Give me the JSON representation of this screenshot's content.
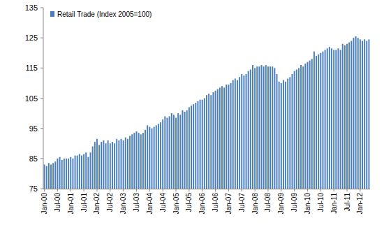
{
  "chart_data": {
    "type": "bar",
    "series": [
      {
        "name": "Retail Trade (Index 2005=100)",
        "color": "#4a7ebb",
        "values": [
          83,
          82.5,
          83.5,
          83,
          83.5,
          84,
          85,
          85.5,
          84.5,
          85,
          85,
          85,
          85.5,
          85,
          86,
          86,
          86.5,
          86,
          86.5,
          87,
          85.5,
          87,
          89,
          90.5,
          91.5,
          89.5,
          90.5,
          91,
          90,
          91,
          90,
          90.5,
          90,
          91.5,
          91,
          91.5,
          91,
          92,
          91.5,
          92.5,
          93,
          93.5,
          94,
          93.5,
          93,
          93.5,
          94.5,
          96,
          95.5,
          95,
          95.5,
          96,
          96.5,
          97,
          98,
          99,
          98.5,
          99,
          100,
          99.5,
          98.5,
          100,
          99.5,
          101,
          100.5,
          101,
          102,
          102.5,
          103,
          103.5,
          104,
          104.5,
          104.5,
          105,
          106,
          106.5,
          106,
          107,
          107.5,
          108,
          108.5,
          109,
          108.5,
          109.5,
          109.5,
          110,
          111,
          111.5,
          111,
          112,
          113,
          112.5,
          113,
          114,
          114.5,
          116,
          115,
          115.5,
          115.5,
          116,
          115.5,
          116,
          115.5,
          115.5,
          115.5,
          115,
          113,
          110.5,
          110,
          111,
          110.5,
          111.5,
          112,
          113,
          114,
          114.5,
          115,
          116,
          115.5,
          116.5,
          117,
          117.5,
          118,
          120.5,
          119,
          119.5,
          120,
          120.5,
          121,
          121.5,
          122,
          121.5,
          121,
          121,
          121.5,
          121,
          123,
          122.5,
          123,
          123.5,
          124,
          125,
          125.5,
          125,
          124.5,
          124,
          124.5,
          124,
          124.5
        ]
      }
    ],
    "categories": [
      "Jan-00",
      null,
      null,
      null,
      null,
      null,
      "Jul-00",
      null,
      null,
      null,
      null,
      null,
      "Jan-01",
      null,
      null,
      null,
      null,
      null,
      "Jul-01",
      null,
      null,
      null,
      null,
      null,
      "Jan-02",
      null,
      null,
      null,
      null,
      null,
      "Jul-02",
      null,
      null,
      null,
      null,
      null,
      "Jan-03",
      null,
      null,
      null,
      null,
      null,
      "Jul-03",
      null,
      null,
      null,
      null,
      null,
      "Jan-04",
      null,
      null,
      null,
      null,
      null,
      "Jul-04",
      null,
      null,
      null,
      null,
      null,
      "Jan-05",
      null,
      null,
      null,
      null,
      null,
      "Jul-05",
      null,
      null,
      null,
      null,
      null,
      "Jan-06",
      null,
      null,
      null,
      null,
      null,
      "Jul-06",
      null,
      null,
      null,
      null,
      null,
      "Jan-07",
      null,
      null,
      null,
      null,
      null,
      "Jul-07",
      null,
      null,
      null,
      null,
      null,
      "Jan-08",
      null,
      null,
      null,
      null,
      null,
      "Jul-08",
      null,
      null,
      null,
      null,
      null,
      "Jan-09",
      null,
      null,
      null,
      null,
      null,
      "Jul-09",
      null,
      null,
      null,
      null,
      null,
      "Jan-10",
      null,
      null,
      null,
      null,
      null,
      "Jul-10",
      null,
      null,
      null,
      null,
      null,
      "Jan-11",
      null,
      null,
      null,
      null,
      null,
      "Jul-11",
      null,
      null,
      null,
      null,
      null,
      "Jan-12",
      null,
      null,
      null,
      null
    ],
    "ylim": [
      75,
      135
    ],
    "yticks": [
      75,
      85,
      95,
      105,
      115,
      125,
      135
    ],
    "grid": false,
    "legend": "top-left"
  }
}
